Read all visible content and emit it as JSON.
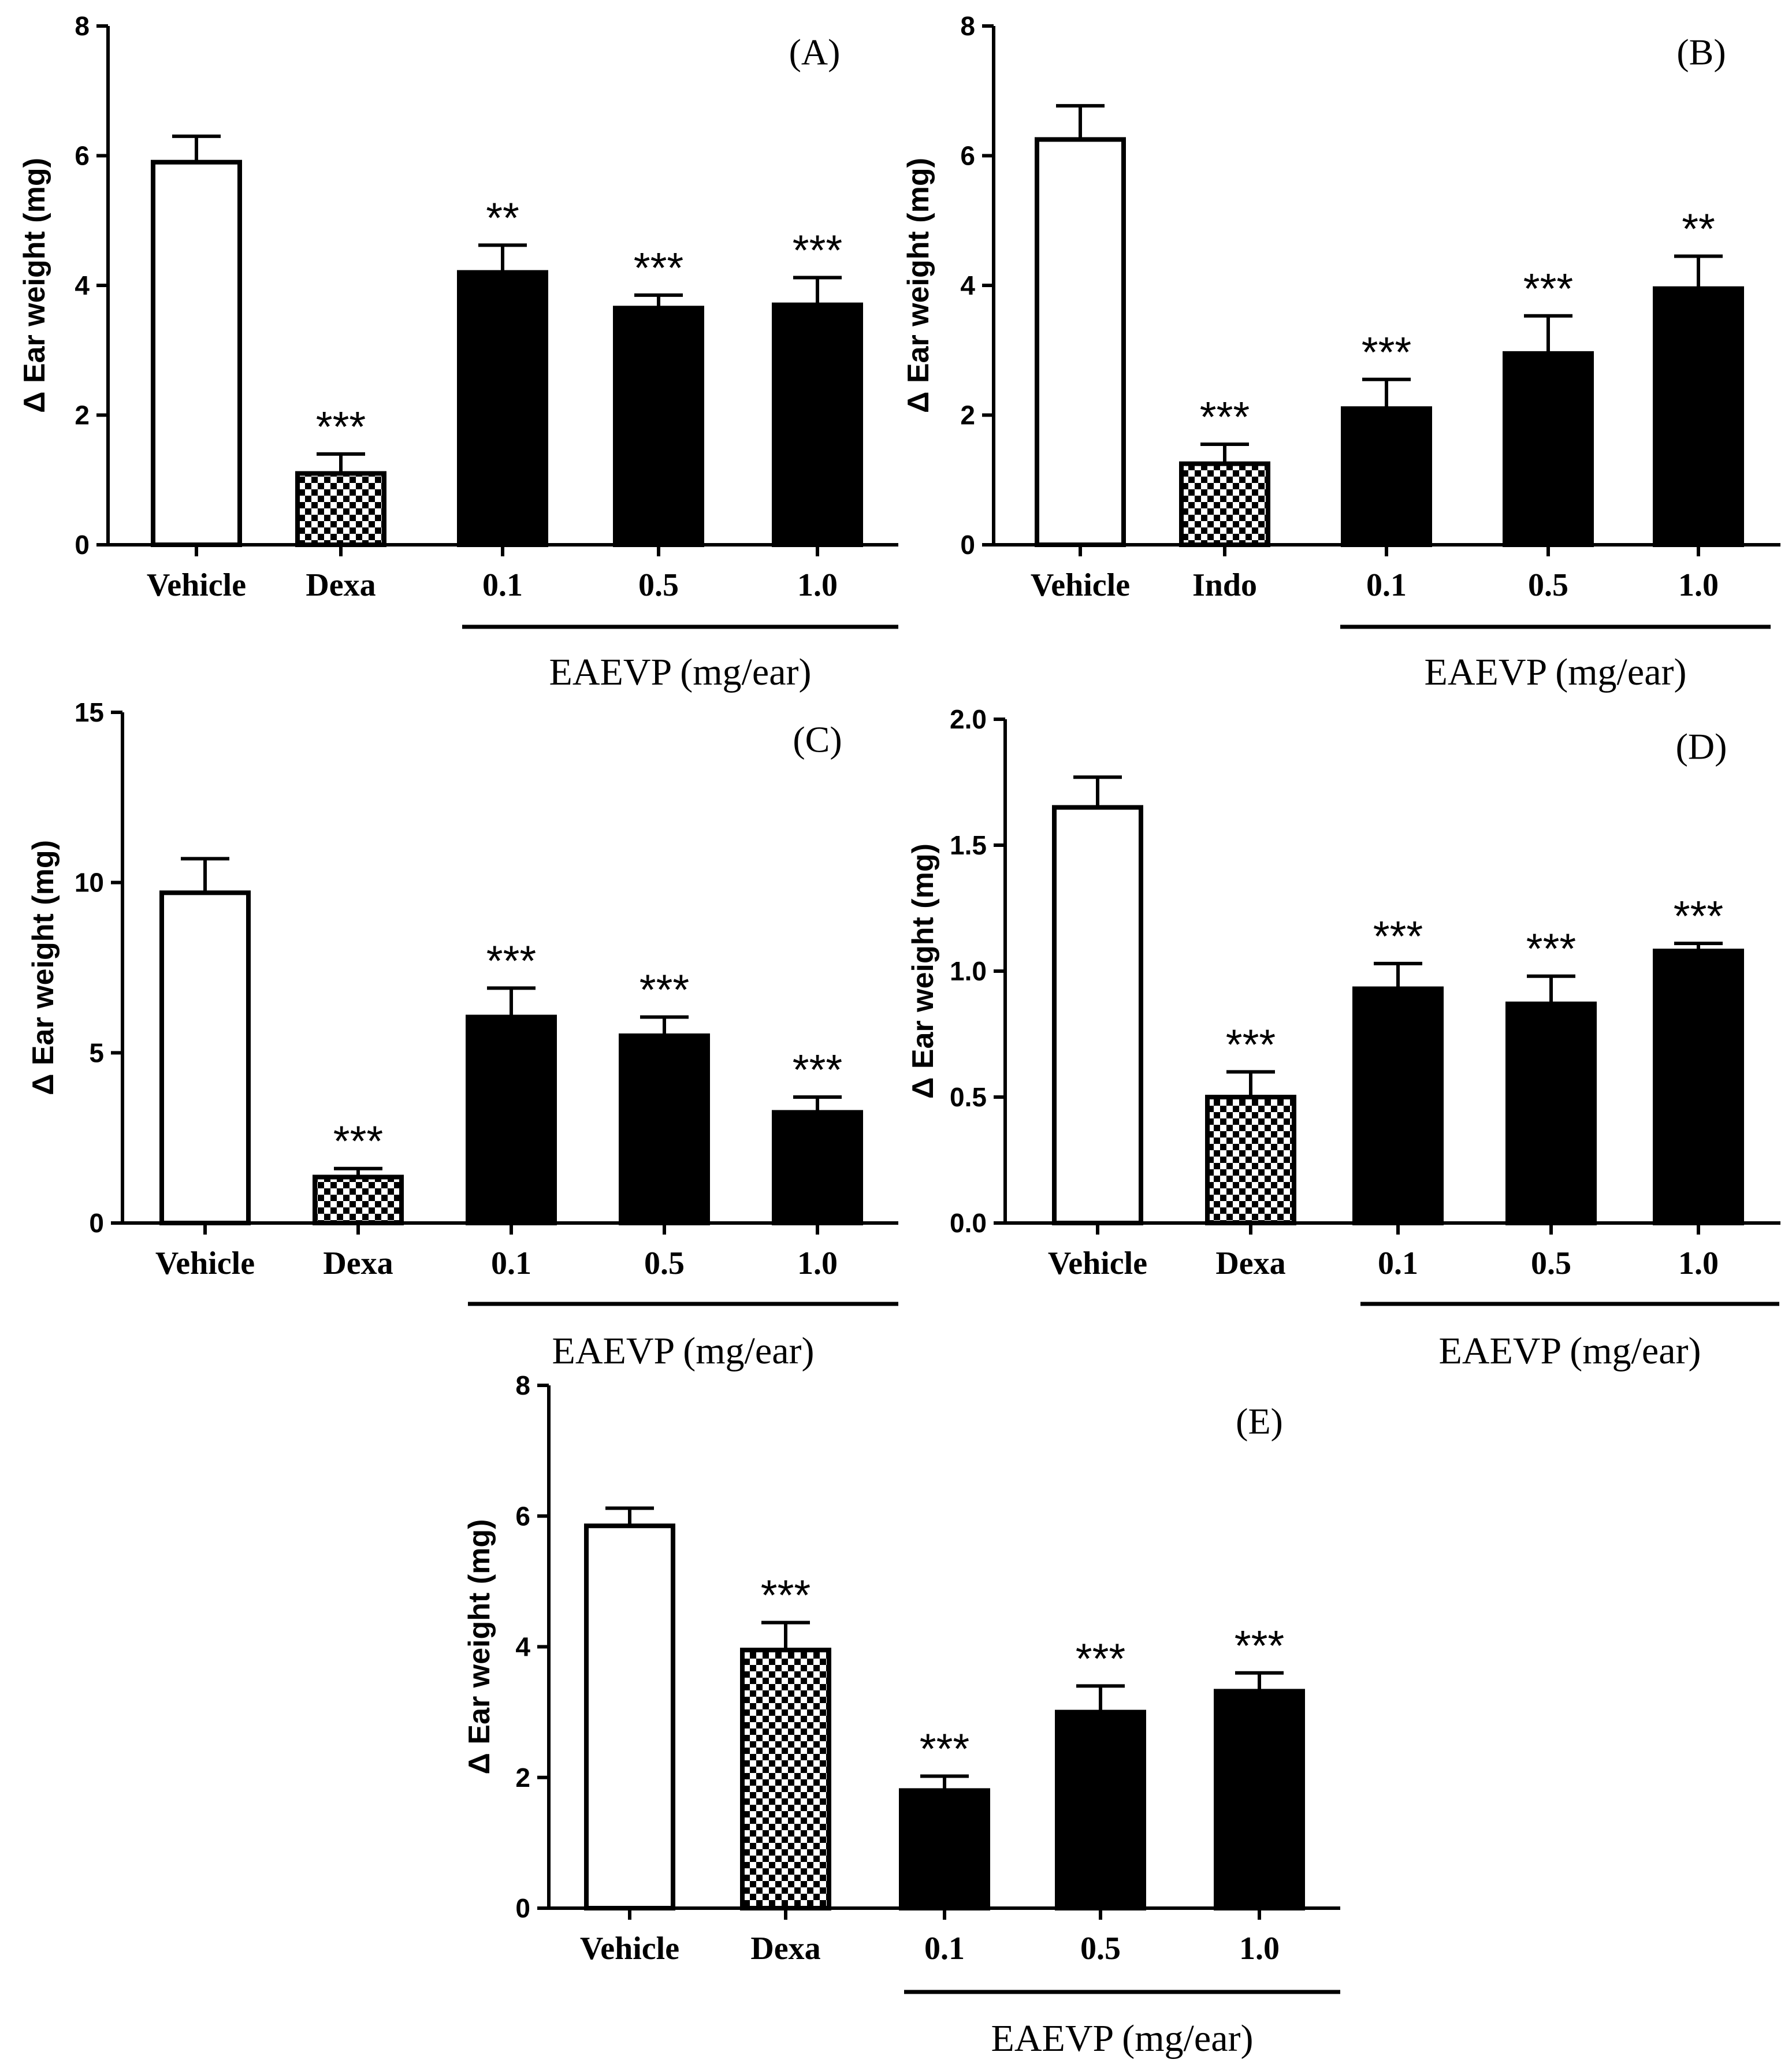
{
  "figure": {
    "colors": {
      "ink": "#000000",
      "paper": "#ffffff"
    }
  },
  "chart_data": [
    {
      "type": "bar",
      "panel_label": "(A)",
      "ylabel": "Δ Ear weight (mg)",
      "ylim": [
        0,
        8
      ],
      "yticks": [
        "0",
        "2",
        "4",
        "6",
        "8"
      ],
      "categories": [
        "Vehicle",
        "Dexa",
        "0.1",
        "0.5",
        "1.0"
      ],
      "group_label": "EAEVP (mg/ear)",
      "grouped_categories": [
        "0.1",
        "0.5",
        "1.0"
      ],
      "fills": [
        "open",
        "checker",
        "solid",
        "solid",
        "solid"
      ],
      "values": [
        5.9,
        1.1,
        4.2,
        3.65,
        3.7
      ],
      "errors": [
        0.4,
        0.3,
        0.42,
        0.2,
        0.42
      ],
      "significance": [
        "",
        "***",
        "**",
        "***",
        "***"
      ]
    },
    {
      "type": "bar",
      "panel_label": "(B)",
      "ylabel": "Δ Ear weight (mg)",
      "ylim": [
        0,
        8
      ],
      "yticks": [
        "0",
        "2",
        "4",
        "6",
        "8"
      ],
      "categories": [
        "Vehicle",
        "Indo",
        "0.1",
        "0.5",
        "1.0"
      ],
      "group_label": "EAEVP (mg/ear)",
      "grouped_categories": [
        "0.1",
        "0.5",
        "1.0"
      ],
      "fills": [
        "open",
        "checker",
        "solid",
        "solid",
        "solid"
      ],
      "values": [
        6.25,
        1.25,
        2.1,
        2.95,
        3.95
      ],
      "errors": [
        0.52,
        0.3,
        0.45,
        0.58,
        0.5
      ],
      "significance": [
        "",
        "***",
        "***",
        "***",
        "**"
      ]
    },
    {
      "type": "bar",
      "panel_label": "(C)",
      "ylabel": "Δ Ear weight (mg)",
      "ylim": [
        0,
        15
      ],
      "yticks": [
        "0",
        "5",
        "10",
        "15"
      ],
      "categories": [
        "Vehicle",
        "Dexa",
        "0.1",
        "0.5",
        "1.0"
      ],
      "group_label": "EAEVP (mg/ear)",
      "grouped_categories": [
        "0.1",
        "0.5",
        "1.0"
      ],
      "fills": [
        "open",
        "checker",
        "solid",
        "solid",
        "solid"
      ],
      "values": [
        9.7,
        1.35,
        6.05,
        5.5,
        3.25
      ],
      "errors": [
        1.0,
        0.25,
        0.85,
        0.55,
        0.45
      ],
      "significance": [
        "",
        "***",
        "***",
        "***",
        "***"
      ]
    },
    {
      "type": "bar",
      "panel_label": "(D)",
      "ylabel": "Δ Ear weight (mg)",
      "ylim": [
        0,
        2.0
      ],
      "yticks": [
        "0.0",
        "0.5",
        "1.0",
        "1.5",
        "2.0"
      ],
      "categories": [
        "Vehicle",
        "Dexa",
        "0.1",
        "0.5",
        "1.0"
      ],
      "group_label": "EAEVP (mg/ear)",
      "grouped_categories": [
        "0.1",
        "0.5",
        "1.0"
      ],
      "fills": [
        "open",
        "checker",
        "solid",
        "solid",
        "solid"
      ],
      "values": [
        1.65,
        0.5,
        0.93,
        0.87,
        1.08
      ],
      "errors": [
        0.12,
        0.1,
        0.1,
        0.11,
        0.03
      ],
      "significance": [
        "",
        "***",
        "***",
        "***",
        "***"
      ]
    },
    {
      "type": "bar",
      "panel_label": "(E)",
      "ylabel": "Δ Ear weight (mg)",
      "ylim": [
        0,
        8
      ],
      "yticks": [
        "0",
        "2",
        "4",
        "6",
        "8"
      ],
      "categories": [
        "Vehicle",
        "Dexa",
        "0.1",
        "0.5",
        "1.0"
      ],
      "group_label": "EAEVP (mg/ear)",
      "grouped_categories": [
        "0.1",
        "0.5",
        "1.0"
      ],
      "fills": [
        "open",
        "checker",
        "solid",
        "solid",
        "solid"
      ],
      "values": [
        5.85,
        3.95,
        1.8,
        3.0,
        3.32
      ],
      "errors": [
        0.27,
        0.42,
        0.22,
        0.4,
        0.28
      ],
      "significance": [
        "",
        "***",
        "***",
        "***",
        "***"
      ]
    }
  ]
}
